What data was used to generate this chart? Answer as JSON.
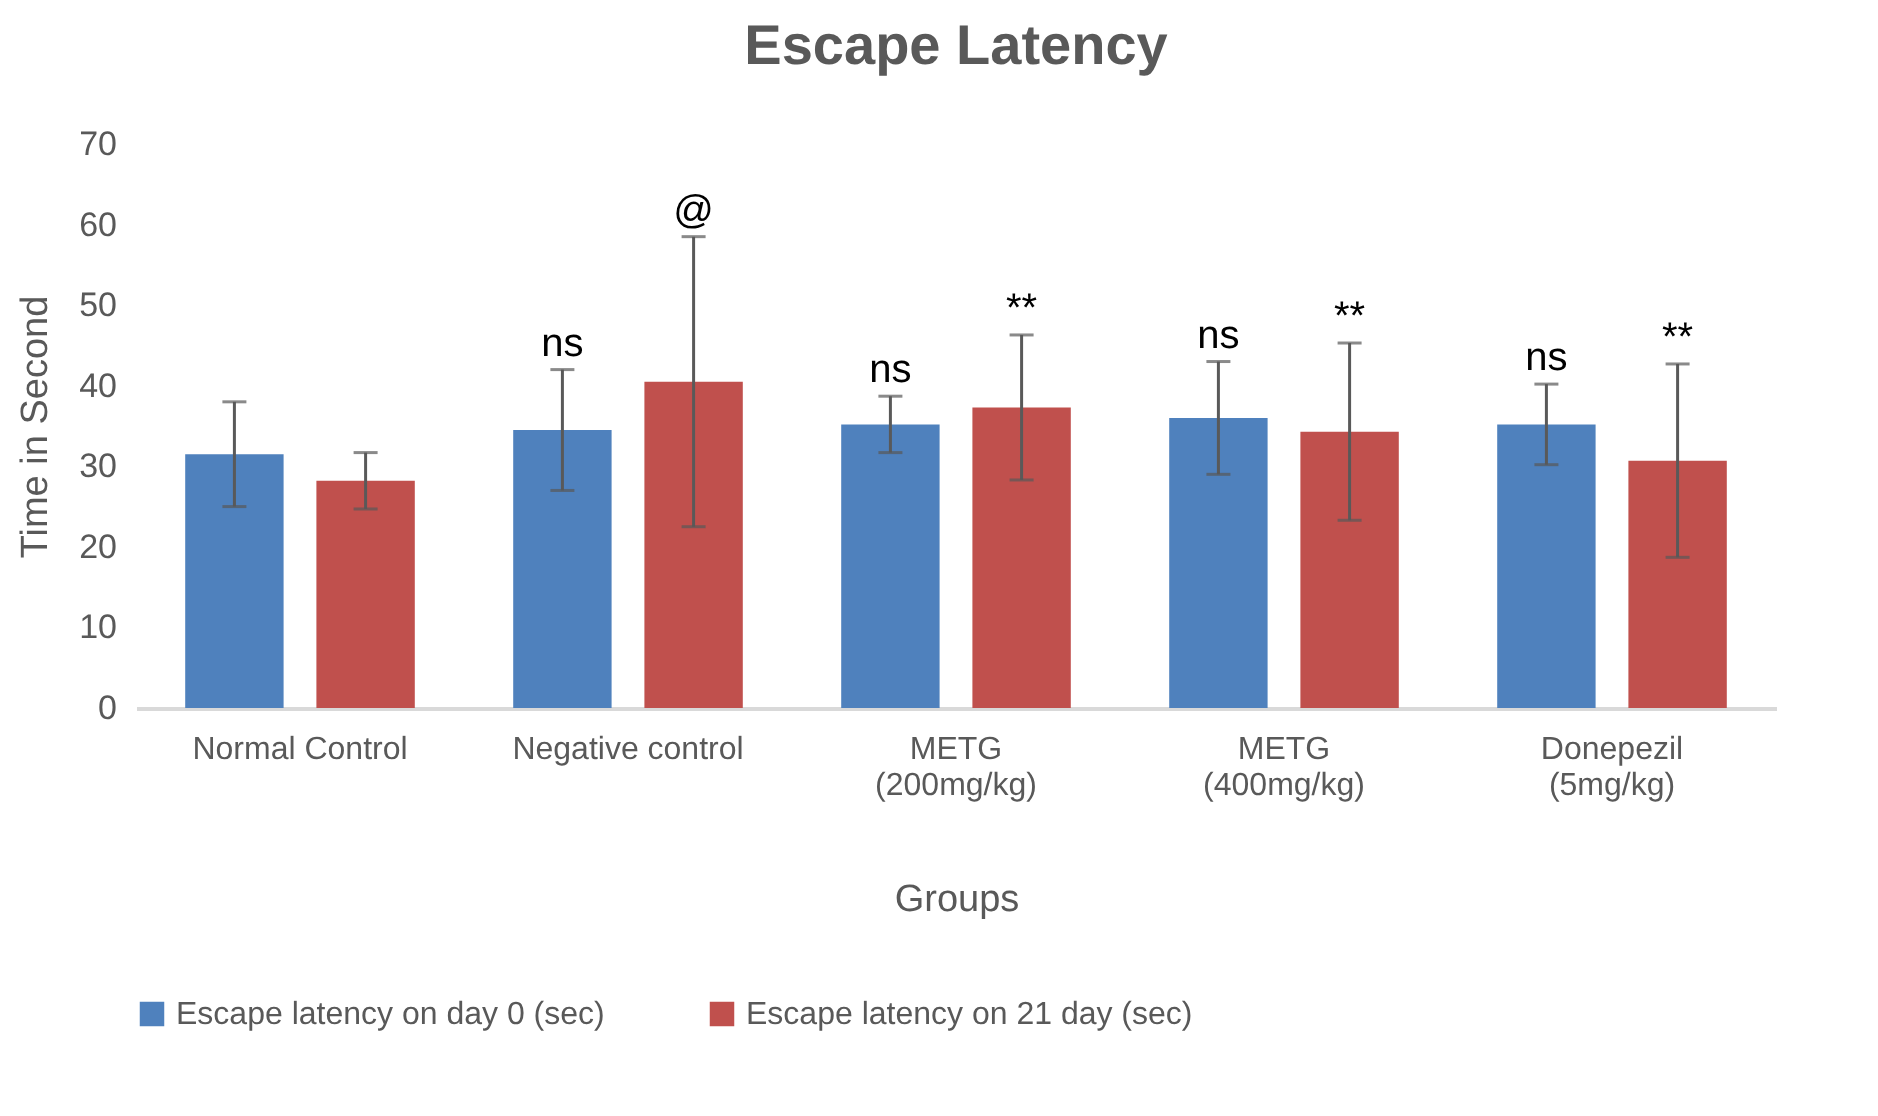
{
  "chart_data": {
    "type": "bar",
    "title": "Escape Latency",
    "xlabel": "Groups",
    "ylabel": "Time in Second",
    "categories": [
      "Normal Control",
      "Negative control",
      "METG\n(200mg/kg)",
      "METG\n(400mg/kg)",
      "Donepezil\n(5mg/kg)"
    ],
    "series": [
      {
        "name": "Escape latency on day 0 (sec)",
        "color": "#4f81bd",
        "values": [
          31.5,
          34.5,
          35.2,
          36,
          35.2
        ],
        "errors": [
          6.5,
          7.5,
          3.5,
          7,
          5
        ]
      },
      {
        "name": "Escape latency on 21 day (sec)",
        "color": "#c0504d",
        "values": [
          28.2,
          40.5,
          37.3,
          34.3,
          30.7
        ],
        "errors": [
          3.5,
          18,
          9,
          11,
          12
        ]
      }
    ],
    "ylim": [
      0,
      70
    ],
    "yticks": [
      0,
      10,
      20,
      30,
      40,
      50,
      60,
      70
    ],
    "grid": false,
    "legend": "bottom",
    "annotations": [
      "ns",
      "@",
      "ns",
      "**",
      "ns",
      "**",
      "ns",
      "**"
    ]
  }
}
